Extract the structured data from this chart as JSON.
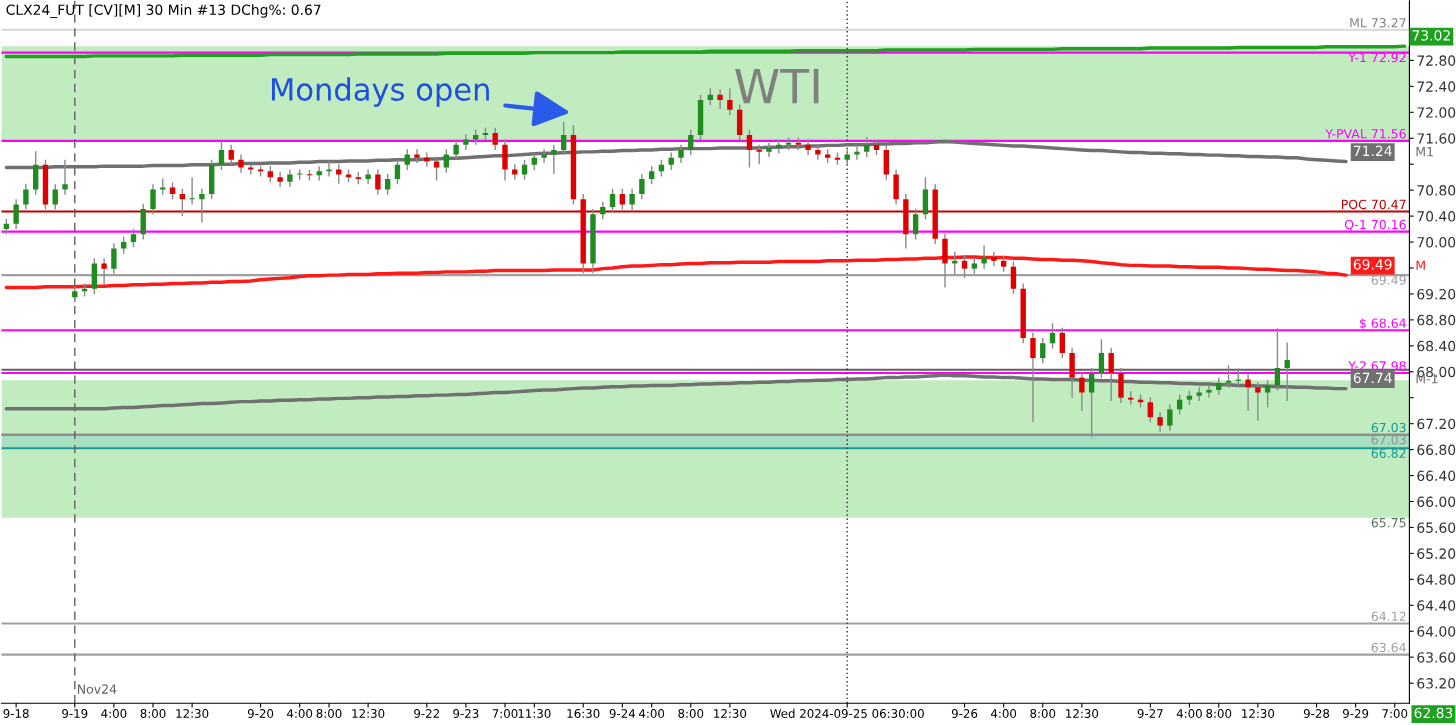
{
  "chart_data": {
    "type": "candlestick",
    "title": "WTI",
    "subtitle": "CLX24_FUT [CV][M] 30 Min #13 DChg%: 0.67",
    "categories": [
      null,
      "9-18",
      null,
      null,
      null,
      null,
      null,
      "9-19",
      null,
      null,
      null,
      "4:00",
      null,
      null,
      null,
      "8:00",
      null,
      null,
      null,
      "12:30",
      null,
      null,
      null,
      null,
      null,
      null,
      "9-20",
      null,
      null,
      null,
      "4:00",
      null,
      null,
      "8:00",
      null,
      null,
      null,
      "12:30",
      null,
      null,
      null,
      null,
      null,
      "9-22",
      null,
      null,
      null,
      "9-23",
      null,
      null,
      null,
      "7:00",
      null,
      null,
      "11:30",
      null,
      null,
      null,
      null,
      "16:30",
      null,
      null,
      null,
      "9-24",
      null,
      null,
      "4:00",
      null,
      null,
      null,
      "8:00",
      null,
      null,
      null,
      "12:30",
      null,
      null,
      null,
      null,
      null,
      null,
      null,
      null,
      null,
      null,
      null,
      "Wed 2024-09-25 06:30:00",
      null,
      null,
      null,
      null,
      null,
      null,
      null,
      null,
      null,
      null,
      null,
      "9-26",
      null,
      null,
      null,
      "4:00",
      null,
      null,
      null,
      "8:00",
      null,
      null,
      null,
      "12:30",
      null,
      null,
      null,
      null,
      null,
      null,
      "9-27",
      null,
      null,
      null,
      "4:00",
      null,
      null,
      "8:00",
      null,
      null,
      null,
      "12:30",
      null,
      null,
      null,
      null,
      null,
      "9-28",
      null,
      null,
      null,
      "9-29",
      null,
      null,
      null,
      "7:00",
      null
    ],
    "ohlc": [
      [
        70.2,
        70.36,
        70.12,
        70.28
      ],
      [
        70.28,
        70.66,
        70.2,
        70.58
      ],
      [
        70.58,
        70.9,
        70.5,
        70.81
      ],
      [
        70.81,
        71.4,
        70.73,
        71.19
      ],
      [
        71.19,
        71.27,
        70.5,
        70.58
      ],
      [
        70.58,
        70.89,
        70.5,
        70.81
      ],
      [
        70.81,
        71.27,
        70.73,
        70.89
      ],
      [
        69.15,
        69.32,
        69.07,
        69.24
      ],
      [
        69.24,
        69.36,
        69.16,
        69.28
      ],
      [
        69.28,
        69.75,
        69.2,
        69.67
      ],
      [
        69.67,
        69.75,
        69.35,
        69.59
      ],
      [
        69.59,
        69.98,
        69.51,
        69.9
      ],
      [
        69.9,
        70.08,
        69.82,
        70.0
      ],
      [
        70.0,
        70.2,
        69.92,
        70.12
      ],
      [
        70.12,
        70.59,
        70.04,
        70.51
      ],
      [
        70.51,
        70.89,
        70.43,
        70.81
      ],
      [
        70.81,
        70.98,
        70.73,
        70.84
      ],
      [
        70.84,
        70.92,
        70.66,
        70.74
      ],
      [
        70.74,
        70.82,
        70.4,
        70.66
      ],
      [
        70.66,
        71.0,
        70.58,
        70.66
      ],
      [
        70.66,
        70.82,
        70.3,
        70.74
      ],
      [
        70.74,
        71.27,
        70.66,
        71.19
      ],
      [
        71.19,
        71.55,
        71.11,
        71.42
      ],
      [
        71.42,
        71.5,
        71.19,
        71.27
      ],
      [
        71.27,
        71.35,
        71.07,
        71.15
      ],
      [
        71.15,
        71.2,
        71.04,
        71.12
      ],
      [
        71.12,
        71.17,
        71.01,
        71.09
      ],
      [
        71.09,
        71.17,
        70.92,
        71.0
      ],
      [
        71.0,
        71.08,
        70.85,
        70.93
      ],
      [
        70.93,
        71.12,
        70.85,
        71.04
      ],
      [
        71.04,
        71.12,
        70.96,
        71.04
      ],
      [
        71.04,
        71.11,
        70.95,
        71.03
      ],
      [
        71.03,
        71.17,
        70.95,
        71.09
      ],
      [
        71.09,
        71.25,
        71.01,
        71.12
      ],
      [
        71.12,
        71.2,
        70.9,
        71.04
      ],
      [
        71.04,
        71.12,
        70.92,
        71.0
      ],
      [
        71.0,
        71.08,
        70.89,
        70.97
      ],
      [
        70.97,
        71.12,
        70.89,
        71.04
      ],
      [
        71.04,
        71.12,
        70.73,
        70.81
      ],
      [
        70.81,
        71.05,
        70.73,
        70.97
      ],
      [
        70.97,
        71.27,
        70.89,
        71.19
      ],
      [
        71.19,
        71.43,
        71.11,
        71.35
      ],
      [
        71.35,
        71.43,
        71.22,
        71.3
      ],
      [
        71.3,
        71.38,
        71.16,
        71.24
      ],
      [
        71.24,
        71.32,
        70.95,
        71.15
      ],
      [
        71.15,
        71.43,
        71.07,
        71.35
      ],
      [
        71.35,
        71.58,
        71.27,
        71.5
      ],
      [
        71.5,
        71.66,
        71.42,
        71.58
      ],
      [
        71.58,
        71.73,
        71.5,
        71.65
      ],
      [
        71.65,
        71.76,
        71.57,
        71.68
      ],
      [
        71.68,
        71.76,
        71.42,
        71.5
      ],
      [
        71.5,
        71.58,
        70.95,
        71.12
      ],
      [
        71.12,
        71.2,
        70.96,
        71.04
      ],
      [
        71.04,
        71.27,
        70.96,
        71.19
      ],
      [
        71.19,
        71.38,
        71.11,
        71.3
      ],
      [
        71.3,
        71.43,
        71.22,
        71.35
      ],
      [
        71.35,
        71.5,
        71.05,
        71.42
      ],
      [
        71.42,
        71.85,
        71.34,
        71.65
      ],
      [
        71.65,
        71.8,
        70.58,
        70.66
      ],
      [
        70.66,
        70.74,
        69.52,
        69.67
      ],
      [
        69.67,
        70.51,
        69.52,
        70.43
      ],
      [
        70.43,
        70.62,
        70.35,
        70.54
      ],
      [
        70.54,
        70.82,
        70.46,
        70.74
      ],
      [
        70.74,
        70.82,
        70.5,
        70.58
      ],
      [
        70.58,
        70.82,
        70.47,
        70.74
      ],
      [
        70.74,
        71.05,
        70.66,
        70.97
      ],
      [
        70.97,
        71.17,
        70.89,
        71.09
      ],
      [
        71.09,
        71.27,
        71.01,
        71.19
      ],
      [
        71.19,
        71.38,
        71.11,
        71.3
      ],
      [
        71.3,
        71.5,
        71.22,
        71.42
      ],
      [
        71.42,
        71.73,
        71.34,
        71.65
      ],
      [
        71.65,
        72.27,
        71.57,
        72.19
      ],
      [
        72.19,
        72.37,
        72.11,
        72.27
      ],
      [
        72.27,
        72.35,
        72.05,
        72.19
      ],
      [
        72.19,
        72.37,
        71.96,
        72.04
      ],
      [
        72.04,
        72.12,
        71.57,
        71.65
      ],
      [
        71.65,
        71.73,
        71.15,
        71.42
      ],
      [
        71.42,
        71.5,
        71.2,
        71.39
      ],
      [
        71.39,
        71.53,
        71.31,
        71.45
      ],
      [
        71.45,
        71.58,
        71.37,
        71.5
      ],
      [
        71.5,
        71.61,
        71.42,
        71.53
      ],
      [
        71.53,
        71.61,
        71.42,
        71.5
      ],
      [
        71.5,
        71.58,
        71.34,
        71.42
      ],
      [
        71.42,
        71.5,
        71.27,
        71.35
      ],
      [
        71.35,
        71.43,
        71.22,
        71.3
      ],
      [
        71.3,
        71.38,
        71.19,
        71.27
      ],
      [
        71.27,
        71.43,
        71.19,
        71.35
      ],
      [
        71.35,
        71.47,
        71.27,
        71.39
      ],
      [
        71.39,
        71.62,
        71.31,
        71.5
      ],
      [
        71.5,
        71.58,
        71.34,
        71.42
      ],
      [
        71.42,
        71.5,
        70.96,
        71.04
      ],
      [
        71.04,
        71.12,
        70.58,
        70.66
      ],
      [
        70.66,
        70.74,
        69.9,
        70.12
      ],
      [
        70.12,
        70.51,
        70.04,
        70.43
      ],
      [
        70.43,
        71.0,
        70.35,
        70.81
      ],
      [
        70.81,
        70.89,
        69.97,
        70.05
      ],
      [
        70.05,
        70.13,
        69.3,
        69.67
      ],
      [
        69.67,
        69.85,
        69.5,
        69.71
      ],
      [
        69.71,
        69.79,
        69.45,
        69.59
      ],
      [
        69.59,
        69.75,
        69.51,
        69.67
      ],
      [
        69.67,
        69.95,
        69.59,
        69.77
      ],
      [
        69.77,
        69.85,
        69.63,
        69.71
      ],
      [
        69.71,
        69.79,
        69.54,
        69.62
      ],
      [
        69.62,
        69.7,
        69.2,
        69.28
      ],
      [
        69.28,
        69.36,
        68.44,
        68.52
      ],
      [
        68.52,
        68.6,
        67.22,
        68.21
      ],
      [
        68.21,
        68.52,
        68.13,
        68.44
      ],
      [
        68.44,
        68.75,
        68.36,
        68.6
      ],
      [
        68.6,
        68.68,
        68.21,
        68.29
      ],
      [
        68.29,
        68.37,
        67.6,
        67.91
      ],
      [
        67.91,
        67.99,
        67.4,
        67.68
      ],
      [
        67.68,
        68.06,
        66.99,
        67.98
      ],
      [
        67.98,
        68.5,
        67.9,
        68.29
      ],
      [
        68.29,
        68.37,
        67.55,
        67.98
      ],
      [
        67.98,
        68.06,
        67.52,
        67.6
      ],
      [
        67.6,
        67.7,
        67.49,
        67.57
      ],
      [
        67.57,
        67.65,
        67.45,
        67.53
      ],
      [
        67.53,
        67.61,
        67.22,
        67.3
      ],
      [
        67.3,
        67.38,
        67.07,
        67.17
      ],
      [
        67.17,
        67.5,
        67.09,
        67.42
      ],
      [
        67.42,
        67.65,
        67.34,
        67.57
      ],
      [
        67.57,
        67.71,
        67.49,
        67.63
      ],
      [
        67.63,
        67.76,
        67.55,
        67.68
      ],
      [
        67.68,
        67.8,
        67.6,
        67.72
      ],
      [
        67.72,
        67.91,
        67.64,
        67.83
      ],
      [
        67.83,
        68.1,
        67.75,
        67.86
      ],
      [
        67.86,
        68.05,
        67.78,
        67.88
      ],
      [
        67.88,
        67.96,
        67.4,
        67.76
      ],
      [
        67.76,
        67.84,
        67.25,
        67.68
      ],
      [
        67.68,
        67.87,
        67.45,
        67.79
      ],
      [
        67.79,
        68.67,
        67.71,
        68.06
      ],
      [
        68.06,
        68.45,
        67.55,
        68.18
      ],
      null,
      null,
      null,
      null,
      null,
      null,
      null,
      null,
      null,
      null,
      null,
      null
    ],
    "series": [
      {
        "type": "line",
        "color": "#1fa01f",
        "values": [
          72.86,
          72.86,
          72.86,
          72.86,
          72.86,
          72.86,
          72.86,
          72.86,
          72.86,
          72.87,
          72.87,
          72.87,
          72.87,
          72.87,
          72.87,
          72.87,
          72.87,
          72.87,
          72.88,
          72.88,
          72.88,
          72.88,
          72.88,
          72.88,
          72.88,
          72.88,
          72.88,
          72.89,
          72.89,
          72.89,
          72.89,
          72.89,
          72.89,
          72.89,
          72.89,
          72.89,
          72.9,
          72.9,
          72.9,
          72.9,
          72.9,
          72.9,
          72.9,
          72.9,
          72.9,
          72.91,
          72.91,
          72.91,
          72.91,
          72.91,
          72.91,
          72.91,
          72.91,
          72.91,
          72.92,
          72.92,
          72.92,
          72.92,
          72.92,
          72.92,
          72.92,
          72.92,
          72.92,
          72.93,
          72.93,
          72.93,
          72.93,
          72.93,
          72.93,
          72.93,
          72.93,
          72.93,
          72.94,
          72.94,
          72.94,
          72.94,
          72.94,
          72.94,
          72.94,
          72.94,
          72.94,
          72.95,
          72.95,
          72.95,
          72.95,
          72.95,
          72.95,
          72.95,
          72.95,
          72.95,
          72.96,
          72.96,
          72.96,
          72.96,
          72.96,
          72.96,
          72.96,
          72.96,
          72.96,
          72.97,
          72.97,
          72.97,
          72.97,
          72.97,
          72.97,
          72.97,
          72.97,
          72.97,
          72.98,
          72.98,
          72.98,
          72.98,
          72.98,
          72.98,
          72.98,
          72.98,
          72.98,
          72.99,
          72.99,
          72.99,
          72.99,
          72.99,
          72.99,
          72.99,
          72.99,
          72.99,
          73.0,
          73.0,
          73.0,
          73.0,
          73.0,
          73.0,
          73.0,
          73.0,
          73.0,
          73.01,
          73.01,
          73.01,
          73.01,
          73.01,
          73.01,
          73.01,
          73.01,
          73.02
        ],
        "value_labels": [
          null,
          null,
          null,
          null,
          null,
          null,
          null,
          null,
          null,
          null,
          null,
          null,
          null,
          null,
          null,
          null,
          null,
          null,
          null,
          null,
          null,
          null,
          null,
          null,
          null,
          null,
          null,
          null,
          null,
          null,
          null,
          null,
          null,
          null,
          null,
          null,
          null,
          null,
          null,
          null,
          null,
          null,
          null,
          null,
          null,
          null,
          null,
          null,
          null,
          null,
          null,
          null,
          null,
          null,
          null,
          null,
          null,
          null,
          null,
          null,
          null,
          null,
          null,
          null,
          null,
          null,
          null,
          null,
          null,
          null,
          null,
          null,
          null,
          null,
          null,
          null,
          null,
          null,
          null,
          null,
          null,
          null,
          null,
          null,
          null,
          null,
          null,
          null,
          null,
          null,
          null,
          null,
          null,
          null,
          null,
          null,
          null,
          null,
          null,
          null,
          null,
          null,
          null,
          null,
          null,
          null,
          null,
          null,
          null,
          null,
          null,
          null,
          null,
          null,
          null,
          null,
          null,
          null,
          null,
          null,
          null,
          null,
          null,
          null,
          null,
          null,
          null,
          null,
          null,
          null,
          null,
          null,
          null,
          null,
          null,
          null,
          null,
          null,
          null,
          null,
          null,
          null,
          null,
          "73.02"
        ]
      },
      {
        "type": "line",
        "name": "M1",
        "color": "#707070",
        "values": [
          71.15,
          71.15,
          71.15,
          71.15,
          71.15,
          71.16,
          71.16,
          71.16,
          71.16,
          71.16,
          71.17,
          71.17,
          71.17,
          71.17,
          71.17,
          71.18,
          71.18,
          71.18,
          71.18,
          71.19,
          71.19,
          71.19,
          71.2,
          71.2,
          71.21,
          71.21,
          71.21,
          71.22,
          71.22,
          71.22,
          71.23,
          71.23,
          71.24,
          71.24,
          71.24,
          71.25,
          71.25,
          71.25,
          71.26,
          71.26,
          71.27,
          71.27,
          71.27,
          71.28,
          71.28,
          71.29,
          71.29,
          71.3,
          71.31,
          71.32,
          71.33,
          71.33,
          71.34,
          71.35,
          71.36,
          71.37,
          71.37,
          71.38,
          71.38,
          71.39,
          71.39,
          71.4,
          71.4,
          71.41,
          71.41,
          71.42,
          71.42,
          71.43,
          71.43,
          71.44,
          71.44,
          71.44,
          71.44,
          71.45,
          71.45,
          71.45,
          71.45,
          71.45,
          71.46,
          71.46,
          71.47,
          71.47,
          71.48,
          71.48,
          71.49,
          71.49,
          71.5,
          71.5,
          71.5,
          71.51,
          71.51,
          71.52,
          71.52,
          71.53,
          71.53,
          71.54,
          71.55,
          71.54,
          71.53,
          71.52,
          71.51,
          71.5,
          71.49,
          71.48,
          71.48,
          71.47,
          71.46,
          71.45,
          71.44,
          71.43,
          71.42,
          71.41,
          71.41,
          71.4,
          71.39,
          71.38,
          71.38,
          71.37,
          71.37,
          71.36,
          71.36,
          71.35,
          71.35,
          71.34,
          71.34,
          71.33,
          71.33,
          71.32,
          71.32,
          71.31,
          71.31,
          71.3,
          71.3,
          71.28,
          71.27,
          71.26,
          71.25,
          71.24,
          null,
          null,
          null,
          null,
          null,
          null
        ],
        "value_labels": [
          null,
          null,
          null,
          null,
          null,
          null,
          null,
          null,
          null,
          null,
          null,
          null,
          null,
          null,
          null,
          null,
          null,
          null,
          null,
          null,
          null,
          null,
          null,
          null,
          null,
          null,
          null,
          null,
          null,
          null,
          null,
          null,
          null,
          null,
          null,
          null,
          null,
          null,
          null,
          null,
          null,
          null,
          null,
          null,
          null,
          null,
          null,
          null,
          null,
          null,
          null,
          null,
          null,
          null,
          null,
          null,
          null,
          null,
          null,
          null,
          null,
          null,
          null,
          null,
          null,
          null,
          null,
          null,
          null,
          null,
          null,
          null,
          null,
          null,
          null,
          null,
          null,
          null,
          null,
          null,
          null,
          null,
          null,
          null,
          null,
          null,
          null,
          null,
          null,
          null,
          null,
          null,
          null,
          null,
          null,
          null,
          null,
          null,
          null,
          null,
          null,
          null,
          null,
          null,
          null,
          null,
          null,
          null,
          null,
          null,
          null,
          null,
          null,
          null,
          null,
          null,
          null,
          null,
          null,
          null,
          null,
          null,
          null,
          null,
          null,
          null,
          null,
          null,
          null,
          null,
          null,
          null,
          null,
          null,
          null,
          null,
          null,
          "71.24",
          null,
          null,
          null,
          null,
          null,
          null
        ]
      },
      {
        "type": "line",
        "name": "M",
        "color": "#ff1a1a",
        "values": [
          69.3,
          69.3,
          69.3,
          69.3,
          69.31,
          69.31,
          69.31,
          69.31,
          69.32,
          69.32,
          69.32,
          69.33,
          69.33,
          69.34,
          69.34,
          69.35,
          69.35,
          69.36,
          69.36,
          69.37,
          69.37,
          69.38,
          69.38,
          69.39,
          69.39,
          69.4,
          69.42,
          69.43,
          69.44,
          69.45,
          69.47,
          69.48,
          69.48,
          69.49,
          69.49,
          69.5,
          69.5,
          69.5,
          69.51,
          69.51,
          69.52,
          69.52,
          69.52,
          69.53,
          69.53,
          69.54,
          69.54,
          69.54,
          69.55,
          69.55,
          69.56,
          69.56,
          69.56,
          69.56,
          69.56,
          69.56,
          69.57,
          69.57,
          69.57,
          69.57,
          69.57,
          69.59,
          69.6,
          69.62,
          69.63,
          69.63,
          69.64,
          69.65,
          69.65,
          69.66,
          69.67,
          69.67,
          69.68,
          69.68,
          69.68,
          69.69,
          69.69,
          69.69,
          69.69,
          69.7,
          69.7,
          69.7,
          69.7,
          69.7,
          69.71,
          69.71,
          69.71,
          69.72,
          69.72,
          69.72,
          69.73,
          69.73,
          69.74,
          69.74,
          69.75,
          69.75,
          69.76,
          69.76,
          69.77,
          69.77,
          69.76,
          69.76,
          69.76,
          69.75,
          69.75,
          69.74,
          69.73,
          69.73,
          69.72,
          69.72,
          69.71,
          69.7,
          69.68,
          69.67,
          69.65,
          69.64,
          69.64,
          69.63,
          69.63,
          69.63,
          69.62,
          69.62,
          69.61,
          69.61,
          69.61,
          69.6,
          69.6,
          69.59,
          69.58,
          69.58,
          69.57,
          69.56,
          69.56,
          69.55,
          69.54,
          69.52,
          69.51,
          69.49,
          null,
          null,
          null,
          null,
          null,
          null
        ],
        "value_labels": [
          null,
          null,
          null,
          null,
          null,
          null,
          null,
          null,
          null,
          null,
          null,
          null,
          null,
          null,
          null,
          null,
          null,
          null,
          null,
          null,
          null,
          null,
          null,
          null,
          null,
          null,
          null,
          null,
          null,
          null,
          null,
          null,
          null,
          null,
          null,
          null,
          null,
          null,
          null,
          null,
          null,
          null,
          null,
          null,
          null,
          null,
          null,
          null,
          null,
          null,
          null,
          null,
          null,
          null,
          null,
          null,
          null,
          null,
          null,
          null,
          null,
          null,
          null,
          null,
          null,
          null,
          null,
          null,
          null,
          null,
          null,
          null,
          null,
          null,
          null,
          null,
          null,
          null,
          null,
          null,
          null,
          null,
          null,
          null,
          null,
          null,
          null,
          null,
          null,
          null,
          null,
          null,
          null,
          null,
          null,
          null,
          null,
          null,
          null,
          null,
          null,
          null,
          null,
          null,
          null,
          null,
          null,
          null,
          null,
          null,
          null,
          null,
          null,
          null,
          null,
          null,
          null,
          null,
          null,
          null,
          null,
          null,
          null,
          null,
          null,
          null,
          null,
          null,
          null,
          null,
          null,
          null,
          null,
          null,
          null,
          null,
          null,
          "69.49",
          null,
          null,
          null,
          null,
          null,
          null
        ]
      },
      {
        "type": "line",
        "name": "M-1",
        "color": "#707070",
        "values": [
          67.43,
          67.43,
          67.43,
          67.43,
          67.43,
          67.43,
          67.43,
          67.43,
          67.43,
          67.43,
          67.43,
          67.44,
          67.45,
          67.45,
          67.46,
          67.47,
          67.48,
          67.48,
          67.49,
          67.5,
          67.51,
          67.51,
          67.52,
          67.53,
          67.54,
          67.54,
          67.55,
          67.55,
          67.56,
          67.56,
          67.57,
          67.57,
          67.58,
          67.58,
          67.59,
          67.59,
          67.6,
          67.6,
          67.61,
          67.61,
          67.62,
          67.62,
          67.63,
          67.63,
          67.64,
          67.64,
          67.65,
          67.65,
          67.66,
          67.67,
          67.68,
          67.68,
          67.69,
          67.7,
          67.71,
          67.72,
          67.72,
          67.73,
          67.74,
          67.75,
          67.75,
          67.76,
          67.77,
          67.77,
          67.78,
          67.78,
          67.79,
          67.79,
          67.79,
          67.8,
          67.8,
          67.81,
          67.81,
          67.82,
          67.82,
          67.83,
          67.83,
          67.84,
          67.84,
          67.85,
          67.85,
          67.86,
          67.86,
          67.87,
          67.87,
          67.88,
          67.88,
          67.89,
          67.89,
          67.9,
          67.91,
          67.91,
          67.92,
          67.92,
          67.93,
          67.94,
          67.95,
          67.94,
          67.94,
          67.93,
          67.92,
          67.92,
          67.91,
          67.91,
          67.9,
          67.89,
          67.89,
          67.88,
          67.88,
          67.88,
          67.87,
          67.87,
          67.86,
          67.86,
          67.85,
          67.85,
          67.84,
          67.84,
          67.83,
          67.83,
          67.82,
          67.82,
          67.81,
          67.81,
          67.8,
          67.8,
          67.79,
          67.79,
          67.78,
          67.78,
          67.77,
          67.77,
          67.76,
          67.76,
          67.75,
          67.75,
          67.74,
          67.74,
          null,
          null,
          null,
          null,
          null,
          null
        ],
        "value_labels": [
          null,
          null,
          null,
          null,
          null,
          null,
          null,
          null,
          null,
          null,
          null,
          null,
          null,
          null,
          null,
          null,
          null,
          null,
          null,
          null,
          null,
          null,
          null,
          null,
          null,
          null,
          null,
          null,
          null,
          null,
          null,
          null,
          null,
          null,
          null,
          null,
          null,
          null,
          null,
          null,
          null,
          null,
          null,
          null,
          null,
          null,
          null,
          null,
          null,
          null,
          null,
          null,
          null,
          null,
          null,
          null,
          null,
          null,
          null,
          null,
          null,
          null,
          null,
          null,
          null,
          null,
          null,
          null,
          null,
          null,
          null,
          null,
          null,
          null,
          null,
          null,
          null,
          null,
          null,
          null,
          null,
          null,
          null,
          null,
          null,
          null,
          null,
          null,
          null,
          null,
          null,
          null,
          null,
          null,
          null,
          null,
          null,
          null,
          null,
          null,
          null,
          null,
          null,
          null,
          null,
          null,
          null,
          null,
          null,
          null,
          null,
          null,
          null,
          null,
          null,
          null,
          null,
          null,
          null,
          null,
          null,
          null,
          null,
          null,
          null,
          null,
          null,
          null,
          null,
          null,
          null,
          null,
          null,
          null,
          null,
          null,
          null,
          "67.74",
          null,
          null,
          null,
          null,
          null,
          null
        ]
      }
    ],
    "bands": [
      {
        "axis": "y",
        "from": 71.56,
        "to": 73.02,
        "color": "#c0ecc0"
      },
      {
        "axis": "y",
        "from": 65.75,
        "to": 67.87,
        "color": "#c0ecc0",
        "label": "65.75"
      },
      {
        "axis": "y",
        "from": 66.82,
        "to": 67.03,
        "color": "#a6e0c0"
      }
    ],
    "ref_lines": [
      {
        "axis": "y",
        "value": 73.27,
        "label": "ML 73.27",
        "color": "#dcdcdc"
      },
      {
        "axis": "y",
        "value": 72.92,
        "label": "Y-1 72.92",
        "color": "#ff00ff"
      },
      {
        "axis": "y",
        "value": 71.56,
        "label": "Y-PVAL 71.56",
        "color": "#ff00ff"
      },
      {
        "axis": "y",
        "value": 70.47,
        "label": "POC 70.47",
        "color": "#c00000"
      },
      {
        "axis": "y",
        "value": 70.16,
        "label": "Q-1 70.16",
        "color": "#ff00ff"
      },
      {
        "axis": "y",
        "value": 69.49,
        "label": "69.49",
        "color": "#a0a0a0"
      },
      {
        "axis": "y",
        "value": 68.64,
        "label": "$ 68.64",
        "color": "#ff00ff"
      },
      {
        "axis": "y",
        "value": 67.98,
        "label": "Y-2 67.98",
        "color": "#ff00ff"
      },
      {
        "axis": "y",
        "value": 68.03,
        "color": "#606060"
      },
      {
        "axis": "y",
        "value": 67.03,
        "label": "67.03",
        "color": "#1a9a9a"
      },
      {
        "axis": "y",
        "value": 67.03,
        "label": "67.03",
        "color": "#909090"
      },
      {
        "axis": "y",
        "value": 66.82,
        "label": "66.82",
        "color": "#1a9a9a"
      },
      {
        "axis": "y",
        "value": 64.12,
        "label": "64.12",
        "color": "#a0a0a0"
      },
      {
        "axis": "y",
        "value": 63.64,
        "label": "63.64",
        "color": "#a0a0a0"
      },
      {
        "axis": "x",
        "value": "9-19",
        "label": "Nov24",
        "color": "#606060",
        "line_style": "dashed"
      },
      {
        "axis": "x",
        "value": "Wed 2024-09-25 06:30:00",
        "color": "#303030",
        "line_style": "dotted"
      }
    ],
    "annotations": [
      "Mondays open",
      "62.83"
    ],
    "ylim": [
      62.89,
      73.72
    ],
    "yticks": [
      {
        "value": 63.2,
        "label": "63.20"
      },
      {
        "value": 63.6,
        "label": "63.60"
      },
      {
        "value": 64.0,
        "label": "64.00"
      },
      {
        "value": 64.4,
        "label": "64.40"
      },
      {
        "value": 64.8,
        "label": "64.80"
      },
      {
        "value": 65.2,
        "label": "65.20"
      },
      {
        "value": 65.6,
        "label": "65.60"
      },
      {
        "value": 66.0,
        "label": "66.00"
      },
      {
        "value": 66.4,
        "label": "66.40"
      },
      {
        "value": 66.8,
        "label": "66.80"
      },
      {
        "value": 67.2,
        "label": "67.20"
      },
      {
        "value": 67.6,
        "label": null
      },
      {
        "value": 68.0,
        "label": "68.00"
      },
      {
        "value": 68.4,
        "label": "68.40"
      },
      {
        "value": 68.8,
        "label": "68.80"
      },
      {
        "value": 69.2,
        "label": "69.20"
      },
      {
        "value": 69.6,
        "label": null
      },
      {
        "value": 70.0,
        "label": "70.00"
      },
      {
        "value": 70.4,
        "label": "70.40"
      },
      {
        "value": 70.8,
        "label": "70.80"
      },
      {
        "value": 71.2,
        "label": null
      },
      {
        "value": 71.6,
        "label": "71.60"
      },
      {
        "value": 72.0,
        "label": "72.00"
      },
      {
        "value": 72.4,
        "label": "72.40"
      },
      {
        "value": 72.8,
        "label": "72.80"
      }
    ],
    "grid": false,
    "legend": "right"
  }
}
